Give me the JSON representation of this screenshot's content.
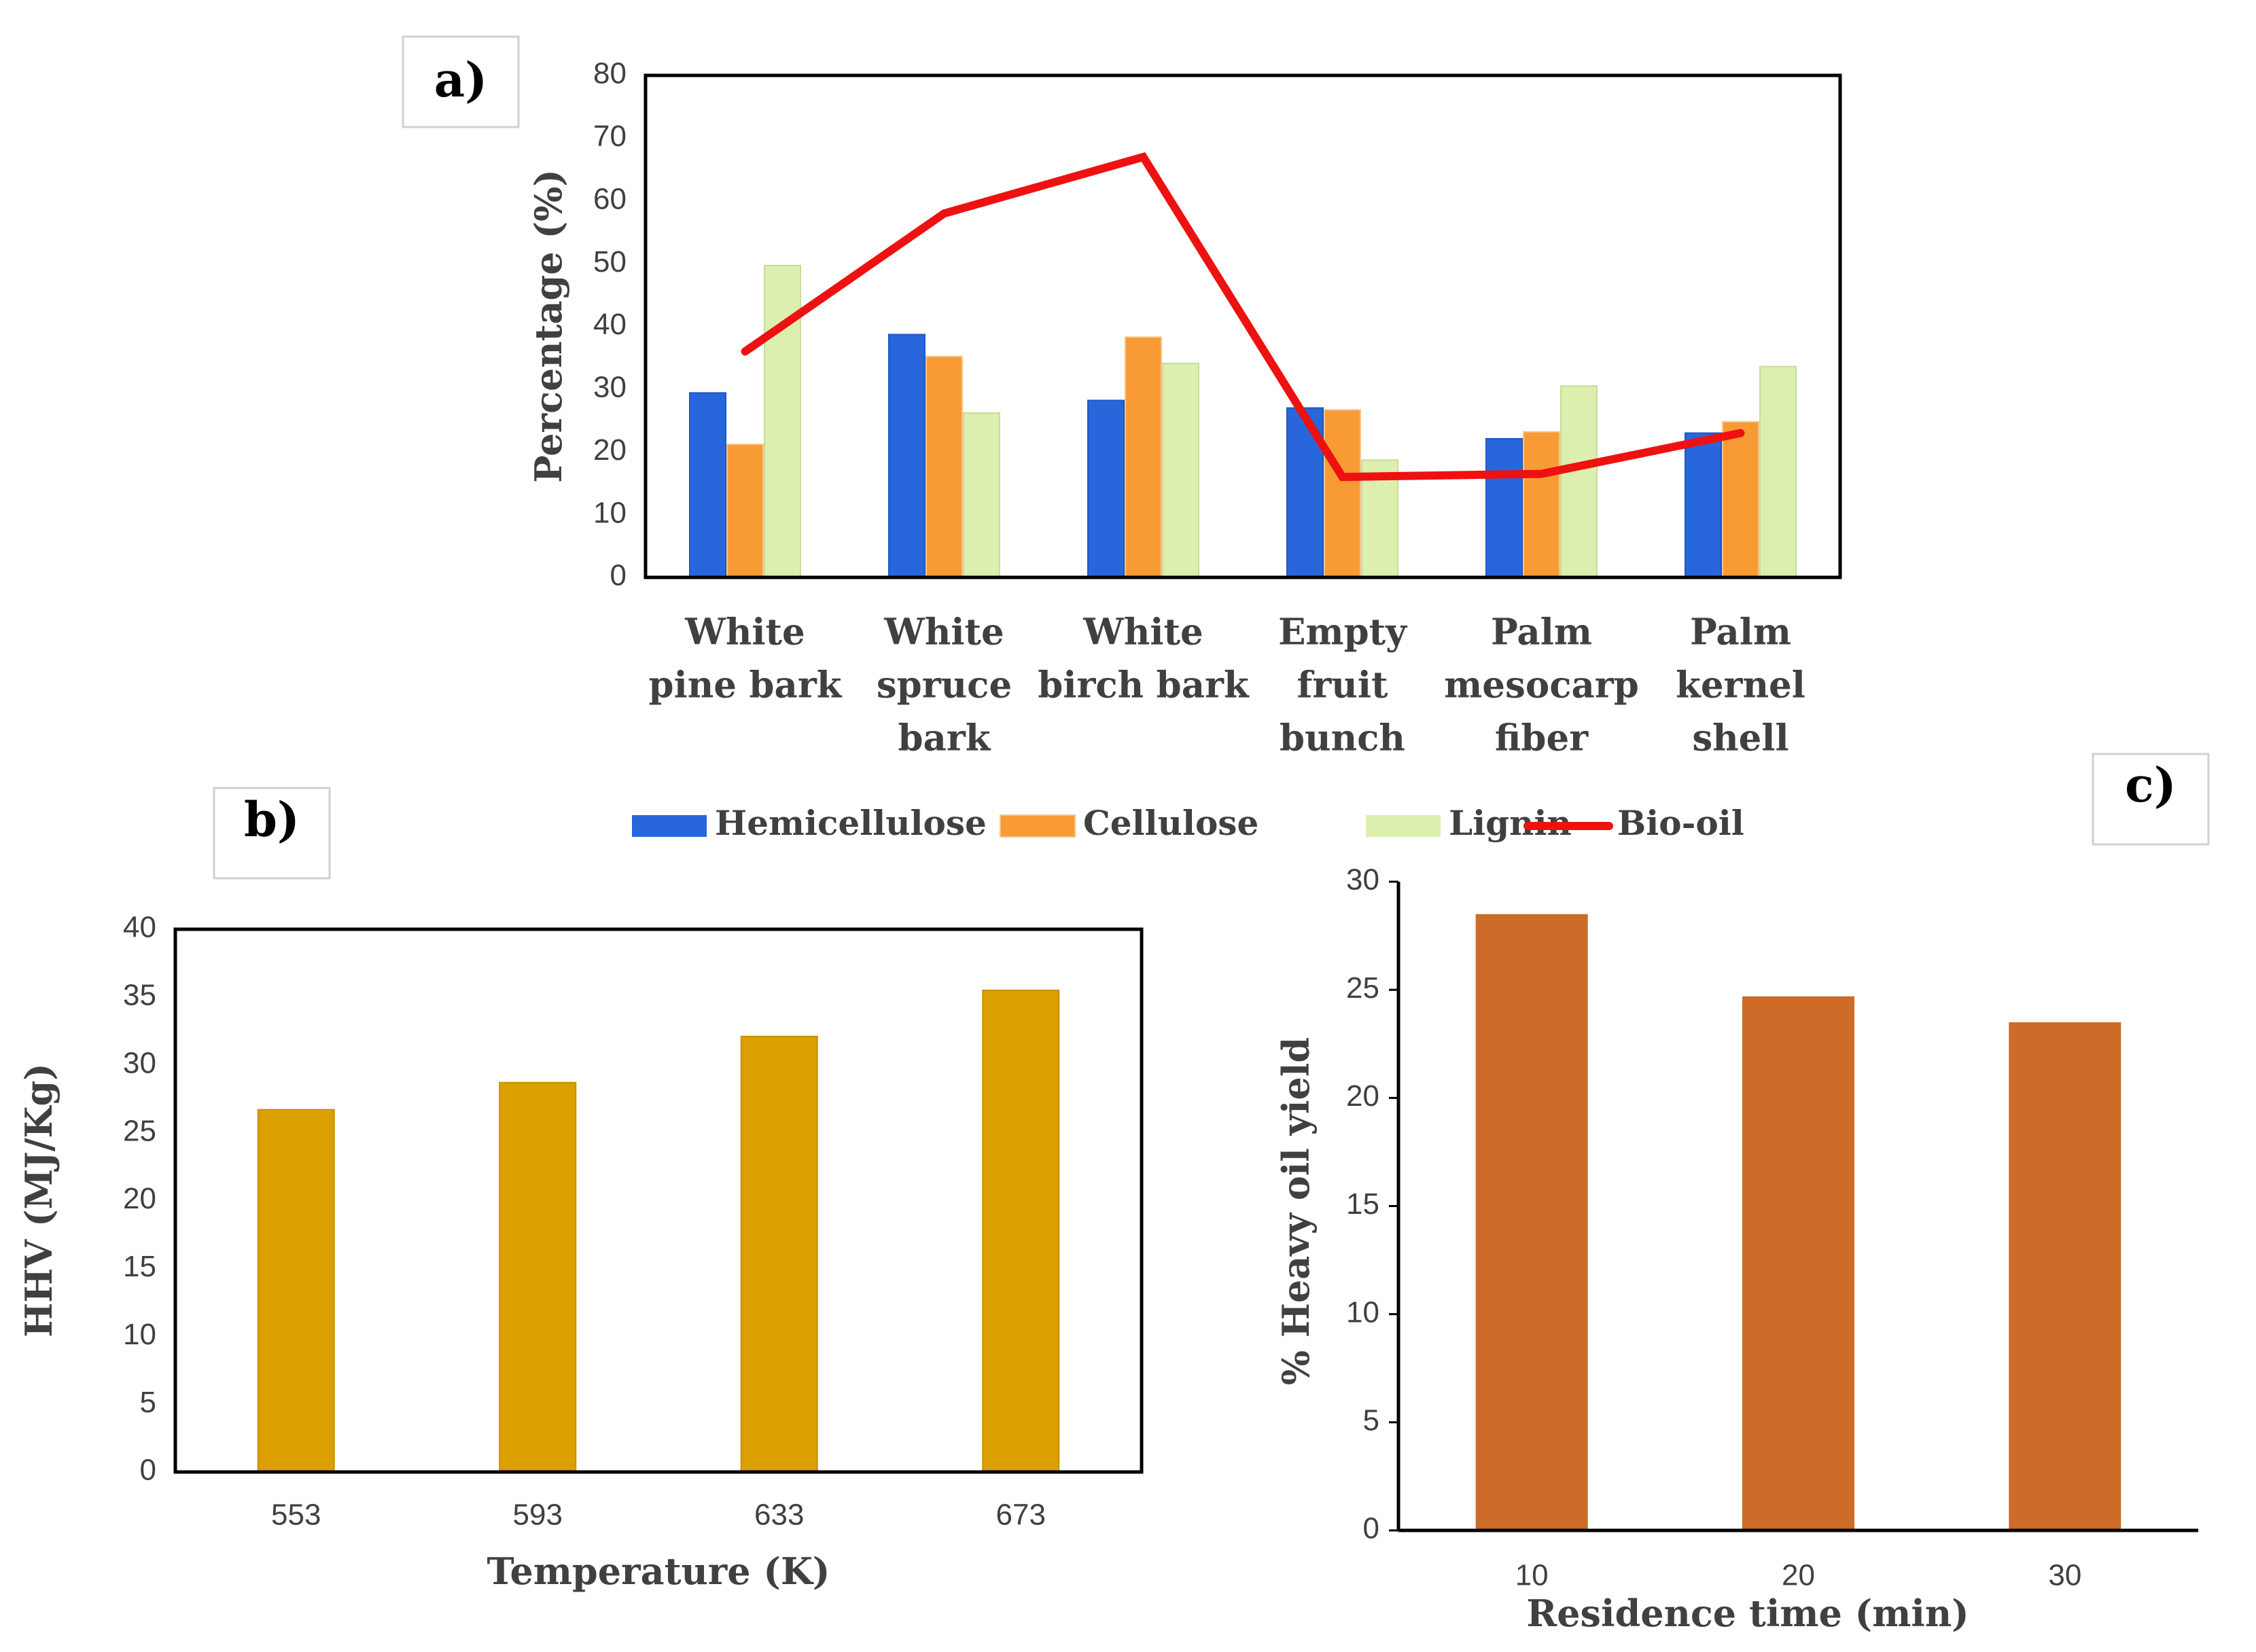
{
  "chart_data": [
    {
      "panel": "a)",
      "type": "bar",
      "categories": [
        [
          "White",
          "pine bark"
        ],
        [
          "White",
          "spruce",
          "bark"
        ],
        [
          "White",
          "birch bark"
        ],
        [
          "Empty",
          "fruit",
          "bunch"
        ],
        [
          "Palm",
          "mesocarp",
          "fiber"
        ],
        [
          "Palm",
          "kernel",
          "shell"
        ]
      ],
      "series": [
        {
          "name": "Hemicellulose",
          "kind": "bar",
          "color": "#2867DB",
          "values": [
            29.4,
            38.7,
            28.2,
            27.0,
            22.1,
            23.0
          ]
        },
        {
          "name": "Cellulose",
          "kind": "bar",
          "color": "#F89B34",
          "values": [
            21.2,
            35.2,
            38.3,
            26.7,
            23.2,
            24.8
          ]
        },
        {
          "name": "Lignin",
          "kind": "bar",
          "color": "#DCEFAE",
          "values": [
            49.7,
            26.2,
            34.1,
            18.7,
            30.5,
            33.6
          ]
        },
        {
          "name": "Bio-oil",
          "kind": "line",
          "color": "#EE1111",
          "values": [
            36,
            58,
            67,
            16,
            16.5,
            23
          ]
        }
      ],
      "ylabel": "Percentage (%)",
      "xlabel": "",
      "ylim": [
        0,
        80
      ],
      "yticks": [
        0,
        10,
        20,
        30,
        40,
        50,
        60,
        70,
        80
      ],
      "legend_position": "bottom"
    },
    {
      "panel": "b)",
      "type": "bar",
      "categories": [
        "553",
        "593",
        "633",
        "673"
      ],
      "values": [
        26.7,
        28.7,
        32.1,
        35.5
      ],
      "color": "#DBA000",
      "xlabel": "Temperature (K)",
      "ylabel": "HHV (MJ/Kg)",
      "ylim": [
        0,
        40
      ],
      "yticks": [
        0,
        5,
        10,
        15,
        20,
        25,
        30,
        35,
        40
      ]
    },
    {
      "panel": "c)",
      "type": "bar",
      "categories": [
        "10",
        "20",
        "30"
      ],
      "values": [
        28.5,
        24.7,
        23.5
      ],
      "color": "#CD6B28",
      "xlabel": "Residence time (min)",
      "ylabel": "% Heavy oil yield",
      "ylim": [
        0,
        30
      ],
      "yticks": [
        0,
        5,
        10,
        15,
        20,
        25,
        30
      ]
    }
  ]
}
